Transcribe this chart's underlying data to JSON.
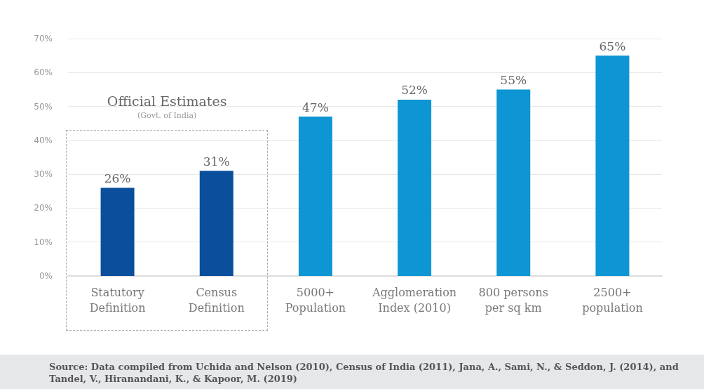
{
  "chart_data": {
    "type": "bar",
    "categories": [
      "Statutory\nDefinition",
      "Census\nDefinition",
      "5000+\nPopulation",
      "Agglomeration\nIndex (2010)",
      "800 persons\nper sq km",
      "2500+\npopulation"
    ],
    "values": [
      26,
      31,
      47,
      52,
      55,
      65
    ],
    "colors": [
      "#0b4f9c",
      "#0b4f9c",
      "#0e96d4",
      "#0e96d4",
      "#0e96d4",
      "#0e96d4"
    ],
    "value_labels": [
      "26%",
      "31%",
      "47%",
      "52%",
      "55%",
      "65%"
    ],
    "ylim": [
      0,
      70
    ],
    "yticks": [
      {
        "value": 0,
        "label": "0%"
      },
      {
        "value": 10,
        "label": "10%"
      },
      {
        "value": 20,
        "label": "20%"
      },
      {
        "value": 30,
        "label": "30%"
      },
      {
        "value": 40,
        "label": "40%"
      },
      {
        "value": 50,
        "label": "50%"
      },
      {
        "value": 60,
        "label": "60%"
      },
      {
        "value": 70,
        "label": "70%"
      }
    ],
    "grid": "y",
    "annotations": [
      "Official Estimates",
      "(Govt. of India)",
      "Source: Data compiled from Uchida and Nelson (2010), Census of India (2011), Jana, A., Sami, N., & Seddon, J. (2014), and Tandel, V., Hiranandani, K., & Kapoor, M. (2019)"
    ]
  }
}
